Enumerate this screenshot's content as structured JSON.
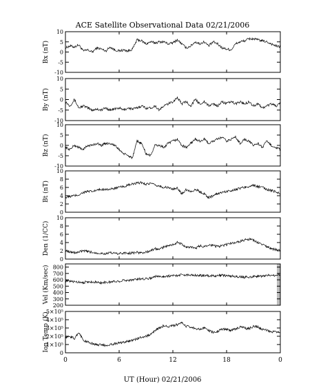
{
  "title": "ACE Satellite Observational Data   02/21/2006",
  "xlabel": "UT (Hour)   02/21/2006",
  "colors": {
    "line": "#000000",
    "background": "#ffffff",
    "gap_shading": "#bdbdbd"
  },
  "chart_data": [
    {
      "type": "line",
      "ylabel": "Bx (nT)",
      "ylim": [
        -10,
        10
      ],
      "yticks": [
        "10",
        "5",
        "0",
        "-5",
        "-10"
      ],
      "ytick_values": [
        10,
        5,
        0,
        -5,
        -10
      ],
      "xticks": [
        "0",
        "6",
        "12",
        "18",
        "0"
      ],
      "xtick_values": [
        0,
        6,
        12,
        18,
        24
      ],
      "xlim": [
        0,
        24
      ],
      "series": [
        {
          "x": [
            0,
            0.5,
            1,
            1.5,
            2,
            2.5,
            3,
            3.5,
            4,
            4.5,
            5,
            5.5,
            6,
            6.5,
            7,
            7.5,
            8,
            8.5,
            9,
            9.5,
            10,
            10.5,
            11,
            11.5,
            12,
            12.5,
            13,
            13.5,
            14,
            14.5,
            15,
            15.5,
            16,
            16.5,
            17,
            17.5,
            18,
            18.5,
            19,
            19.5,
            20,
            20.5,
            21,
            21.5,
            22,
            22.5,
            23,
            23.5,
            24
          ],
          "values": [
            2,
            3,
            2.5,
            3.5,
            0.5,
            1,
            0,
            2,
            1.5,
            0.5,
            2.5,
            1,
            0.5,
            1,
            0.5,
            1.5,
            6,
            5.5,
            4,
            5,
            4.5,
            5,
            5,
            4,
            4.5,
            6,
            4,
            2,
            3,
            5,
            4,
            5,
            3,
            5,
            4,
            2,
            1.5,
            1,
            4,
            5,
            5.5,
            6.5,
            6.5,
            6,
            5.5,
            5,
            4,
            3,
            2.5
          ]
        }
      ]
    },
    {
      "type": "line",
      "ylabel": "By (nT)",
      "ylim": [
        -10,
        10
      ],
      "yticks": [
        "10",
        "5",
        "0",
        "-5",
        "-10"
      ],
      "ytick_values": [
        10,
        5,
        0,
        -5,
        -10
      ],
      "xticks": [
        "0",
        "6",
        "12",
        "18",
        "0"
      ],
      "xtick_values": [
        0,
        6,
        12,
        18,
        24
      ],
      "xlim": [
        0,
        24
      ],
      "series": [
        {
          "x": [
            0,
            0.5,
            1,
            1.5,
            2,
            2.5,
            3,
            3.5,
            4,
            4.5,
            5,
            5.5,
            6,
            6.5,
            7,
            7.5,
            8,
            8.5,
            9,
            9.5,
            10,
            10.5,
            11,
            11.5,
            12,
            12.5,
            13,
            13.5,
            14,
            14.5,
            15,
            15.5,
            16,
            16.5,
            17,
            17.5,
            18,
            18.5,
            19,
            19.5,
            20,
            20.5,
            21,
            21.5,
            22,
            22.5,
            23,
            23.5,
            24
          ],
          "values": [
            -1,
            -3,
            0,
            -4,
            -3,
            -4,
            -5,
            -4.5,
            -5,
            -4,
            -5,
            -4.5,
            -4,
            -5,
            -4,
            -4.5,
            -4,
            -3,
            -4,
            -4,
            -3,
            -5,
            -3,
            -2,
            -1,
            1,
            -2,
            -1,
            -3,
            0,
            -2,
            -1,
            -3,
            -2,
            -3,
            -1,
            -2,
            -1,
            -2,
            -1,
            -2,
            -1,
            -3,
            -2,
            -4,
            -3,
            -2,
            -3,
            -2
          ]
        }
      ]
    },
    {
      "type": "line",
      "ylabel": "Bz (nT)",
      "ylim": [
        -10,
        10
      ],
      "yticks": [
        "10",
        "5",
        "0",
        "-5",
        "-10"
      ],
      "ytick_values": [
        10,
        5,
        0,
        -5,
        -10
      ],
      "xticks": [
        "0",
        "6",
        "12",
        "18",
        "0"
      ],
      "xtick_values": [
        0,
        6,
        12,
        18,
        24
      ],
      "xlim": [
        0,
        24
      ],
      "series": [
        {
          "x": [
            0,
            0.5,
            1,
            1.5,
            2,
            2.5,
            3,
            3.5,
            4,
            4.5,
            5,
            5.5,
            6,
            6.5,
            7,
            7.5,
            8,
            8.5,
            9,
            9.5,
            10,
            10.5,
            11,
            11.5,
            12,
            12.5,
            13,
            13.5,
            14,
            14.5,
            15,
            15.5,
            16,
            16.5,
            17,
            17.5,
            18,
            18.5,
            19,
            19.5,
            20,
            20.5,
            21,
            21.5,
            22,
            22.5,
            23,
            23.5,
            24
          ],
          "values": [
            -1,
            -2,
            0,
            -1,
            -2,
            0,
            0,
            1,
            0,
            1,
            1,
            0,
            -2,
            -4,
            -5,
            -6,
            2,
            1,
            -4,
            -5,
            0,
            0,
            -1,
            1,
            2,
            3,
            0,
            -1,
            1,
            3,
            2,
            3,
            1,
            2,
            3,
            4,
            2,
            3,
            4,
            1,
            3,
            2,
            0,
            1,
            -1,
            2,
            0,
            -1,
            -2
          ]
        }
      ]
    },
    {
      "type": "line",
      "ylabel": "Bt (nT)",
      "ylim": [
        0,
        10
      ],
      "yticks": [
        "10",
        "8",
        "6",
        "4",
        "2",
        "0"
      ],
      "ytick_values": [
        10,
        8,
        6,
        4,
        2,
        0
      ],
      "xticks": [
        "0",
        "6",
        "12",
        "18",
        "0"
      ],
      "xtick_values": [
        0,
        6,
        12,
        18,
        24
      ],
      "xlim": [
        0,
        24
      ],
      "series": [
        {
          "x": [
            0,
            0.5,
            1,
            1.5,
            2,
            2.5,
            3,
            3.5,
            4,
            4.5,
            5,
            5.5,
            6,
            6.5,
            7,
            7.5,
            8,
            8.5,
            9,
            9.5,
            10,
            10.5,
            11,
            11.5,
            12,
            12.5,
            13,
            13.5,
            14,
            14.5,
            15,
            15.5,
            16,
            16.5,
            17,
            17.5,
            18,
            18.5,
            19,
            19.5,
            20,
            20.5,
            21,
            21.5,
            22,
            22.5,
            23,
            23.5,
            24
          ],
          "values": [
            3.5,
            3.8,
            4,
            4.2,
            4.8,
            5,
            5,
            5.3,
            5.5,
            5.6,
            5.5,
            5.8,
            6,
            6.2,
            6.5,
            6.8,
            7,
            7.2,
            6.8,
            7,
            6.5,
            6.3,
            6,
            6,
            5.5,
            5.8,
            4.5,
            5.5,
            5,
            5.5,
            5,
            4.5,
            3.5,
            4,
            4.5,
            4.8,
            5,
            5.3,
            5.5,
            5.8,
            6,
            6.3,
            6.5,
            6.2,
            6,
            5.5,
            5.2,
            5,
            4.5
          ]
        }
      ]
    },
    {
      "type": "line",
      "ylabel": "Den (1/CC)",
      "ylim": [
        0,
        10
      ],
      "yticks": [
        "10",
        "8",
        "6",
        "4",
        "2",
        "0"
      ],
      "ytick_values": [
        10,
        8,
        6,
        4,
        2,
        0
      ],
      "xticks": [
        "0",
        "6",
        "12",
        "18",
        "0"
      ],
      "xtick_values": [
        0,
        6,
        12,
        18,
        24
      ],
      "xlim": [
        0,
        24
      ],
      "series": [
        {
          "x": [
            0,
            0.5,
            1,
            1.5,
            2,
            2.5,
            3,
            3.5,
            4,
            4.5,
            5,
            5.5,
            6,
            6.5,
            7,
            7.5,
            8,
            8.5,
            9,
            9.5,
            10,
            10.5,
            11,
            11.5,
            12,
            12.5,
            13,
            13.5,
            14,
            14.5,
            15,
            15.5,
            16,
            16.5,
            17,
            17.5,
            18,
            18.5,
            19,
            19.5,
            20,
            20.5,
            21,
            21.5,
            22,
            22.5,
            23,
            23.5,
            24
          ],
          "values": [
            2,
            1.8,
            1.5,
            1.7,
            2,
            1.8,
            1.6,
            1.5,
            1.4,
            1.3,
            1.5,
            1.4,
            1.3,
            1.5,
            1.4,
            1.5,
            1.6,
            1.5,
            1.7,
            2,
            2.5,
            2.3,
            3,
            3.2,
            3.5,
            4,
            3.6,
            2.8,
            3,
            2.5,
            3.2,
            3,
            3.5,
            3.3,
            3,
            3.2,
            3.5,
            3.8,
            4,
            4.3,
            4.6,
            4.8,
            4.5,
            4,
            3.5,
            3,
            2.5,
            2.3,
            2
          ]
        }
      ]
    },
    {
      "type": "line",
      "ylabel": "Vel (Km/sec)",
      "ylim": [
        200,
        850
      ],
      "yticks": [
        "800",
        "700",
        "600",
        "500",
        "400",
        "300",
        "200"
      ],
      "ytick_values": [
        800,
        700,
        600,
        500,
        400,
        300,
        200
      ],
      "xticks": [
        "0",
        "6",
        "12",
        "18",
        "0"
      ],
      "xtick_values": [
        0,
        6,
        12,
        18,
        24
      ],
      "xlim": [
        0,
        24
      ],
      "series": [
        {
          "x": [
            0,
            0.5,
            1,
            1.5,
            2,
            2.5,
            3,
            3.5,
            4,
            4.5,
            5,
            5.5,
            6,
            6.5,
            7,
            7.5,
            8,
            8.5,
            9,
            9.5,
            10,
            10.5,
            11,
            11.5,
            12,
            12.5,
            13,
            13.5,
            14,
            14.5,
            15,
            15.5,
            16,
            16.5,
            17,
            17.5,
            18,
            18.5,
            19,
            19.5,
            20,
            20.5,
            21,
            21.5,
            22,
            22.5,
            23,
            23.5,
            24
          ],
          "values": [
            580,
            575,
            570,
            565,
            560,
            565,
            570,
            560,
            555,
            560,
            565,
            575,
            580,
            590,
            595,
            600,
            610,
            615,
            620,
            625,
            655,
            650,
            655,
            660,
            665,
            670,
            680,
            675,
            680,
            675,
            670,
            665,
            665,
            660,
            665,
            670,
            665,
            660,
            650,
            645,
            640,
            645,
            650,
            655,
            660,
            665,
            670,
            675,
            680
          ]
        }
      ]
    },
    {
      "type": "line",
      "ylabel": "Ion Temp (K)",
      "ylim": [
        0,
        500000
      ],
      "yticks": [
        "5×10⁵",
        "4×10⁵",
        "3×10⁵",
        "2×10⁵",
        "1×10⁵",
        "0"
      ],
      "ytick_values": [
        500000,
        400000,
        300000,
        200000,
        100000,
        0
      ],
      "xticks": [
        "0",
        "6",
        "12",
        "18",
        "0"
      ],
      "xtick_values": [
        0,
        6,
        12,
        18,
        24
      ],
      "xlim": [
        0,
        24
      ],
      "series": [
        {
          "x": [
            0,
            0.5,
            1,
            1.5,
            2,
            2.5,
            3,
            3.5,
            4,
            4.5,
            5,
            5.5,
            6,
            6.5,
            7,
            7.5,
            8,
            8.5,
            9,
            9.5,
            10,
            10.5,
            11,
            11.5,
            12,
            12.5,
            13,
            13.5,
            14,
            14.5,
            15,
            15.5,
            16,
            16.5,
            17,
            17.5,
            18,
            18.5,
            19,
            19.5,
            20,
            20.5,
            21,
            21.5,
            22,
            22.5,
            23,
            23.5,
            24
          ],
          "values": [
            180000,
            200000,
            170000,
            250000,
            150000,
            130000,
            110000,
            100000,
            95000,
            90000,
            100000,
            110000,
            120000,
            130000,
            140000,
            150000,
            170000,
            190000,
            200000,
            220000,
            270000,
            300000,
            330000,
            310000,
            330000,
            340000,
            360000,
            320000,
            310000,
            300000,
            280000,
            300000,
            270000,
            250000,
            260000,
            290000,
            280000,
            270000,
            290000,
            310000,
            300000,
            290000,
            320000,
            310000,
            280000,
            270000,
            250000,
            260000,
            240000
          ]
        }
      ]
    }
  ]
}
